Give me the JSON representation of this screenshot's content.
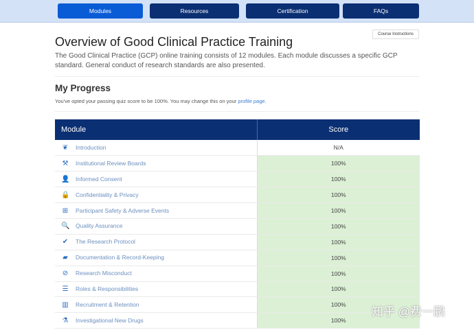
{
  "nav": {
    "items": [
      "Modules",
      "Resources",
      "Certification",
      "FAQs"
    ],
    "active": "Modules"
  },
  "course_instructions": "Course Instructions",
  "title": "Overview of Good Clinical Practice Training",
  "description": "The Good Clinical Practice (GCP) online training consists of 12 modules. Each module discusses a specific GCP standard. General conduct of research standards are also presented.",
  "progress": {
    "heading": "My Progress",
    "note": "You've opted your passing quiz score to be 100%. You may change this on your ",
    "link": "profile page",
    "note_end": "."
  },
  "table": {
    "headers": [
      "Module",
      "Score"
    ],
    "rows": [
      {
        "icon": "leaf-icon",
        "glyph": "❦",
        "module": "Introduction",
        "score": "N/A"
      },
      {
        "icon": "gavel-icon",
        "glyph": "⚒",
        "module": "Institutional Review Boards",
        "score": "100%"
      },
      {
        "icon": "user-icon",
        "glyph": "👤",
        "module": "Informed Consent",
        "score": "100%"
      },
      {
        "icon": "lock-icon",
        "glyph": "🔒",
        "module": "Confidentiality & Privacy",
        "score": "100%"
      },
      {
        "icon": "medkit-icon",
        "glyph": "⊞",
        "module": "Participant Safety & Adverse Events",
        "score": "100%"
      },
      {
        "icon": "search-icon",
        "glyph": "🔍",
        "module": "Quality Assurance",
        "score": "100%"
      },
      {
        "icon": "check-circle-icon",
        "glyph": "✔",
        "module": "The Research Protocol",
        "score": "100%"
      },
      {
        "icon": "book-icon",
        "glyph": "▰",
        "module": "Documentation & Record-Keeping",
        "score": "100%"
      },
      {
        "icon": "ban-icon",
        "glyph": "⊘",
        "module": "Research Misconduct",
        "score": "100%"
      },
      {
        "icon": "list-icon",
        "glyph": "☰",
        "module": "Roles & Responsibilities",
        "score": "100%"
      },
      {
        "icon": "bar-chart-icon",
        "glyph": "▥",
        "module": "Recruitment & Retention",
        "score": "100%"
      },
      {
        "icon": "flask-icon",
        "glyph": "⚗",
        "module": "Investigational New Drugs",
        "score": "100%"
      }
    ]
  },
  "watermark": "知乎 @费一鹏",
  "colors": {
    "nav_active": "#0a5bd6",
    "nav": "#0b2f73",
    "score_pass": "#dcf0d5"
  }
}
